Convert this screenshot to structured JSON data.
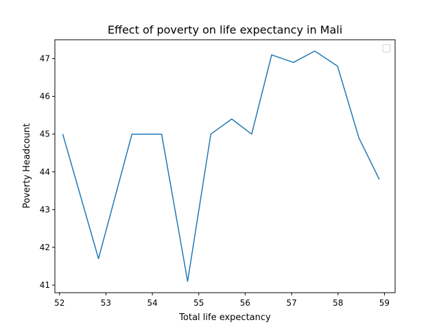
{
  "chart_data": {
    "type": "line",
    "title": "Effect of poverty on life expectancy in Mali",
    "xlabel": "Total life expectancy",
    "ylabel": "Poverty Headcount",
    "xlim": [
      51.9,
      59.23
    ],
    "ylim": [
      40.8,
      47.5
    ],
    "xticks": [
      52,
      53,
      54,
      55,
      56,
      57,
      58,
      59
    ],
    "yticks": [
      41,
      42,
      43,
      44,
      45,
      46,
      47
    ],
    "grid": false,
    "legend": "top-right",
    "line_color": "#1f77b4",
    "series": [
      {
        "x": [
          52.07,
          52.84,
          53.56,
          54.2,
          54.76,
          55.26,
          55.71,
          56.14,
          56.57,
          57.04,
          57.5,
          57.99,
          58.45,
          58.89
        ],
        "values": [
          45.0,
          41.7,
          45.0,
          45.0,
          41.1,
          45.0,
          45.4,
          45.0,
          47.1,
          46.9,
          47.2,
          46.8,
          44.9,
          43.8
        ]
      }
    ]
  }
}
